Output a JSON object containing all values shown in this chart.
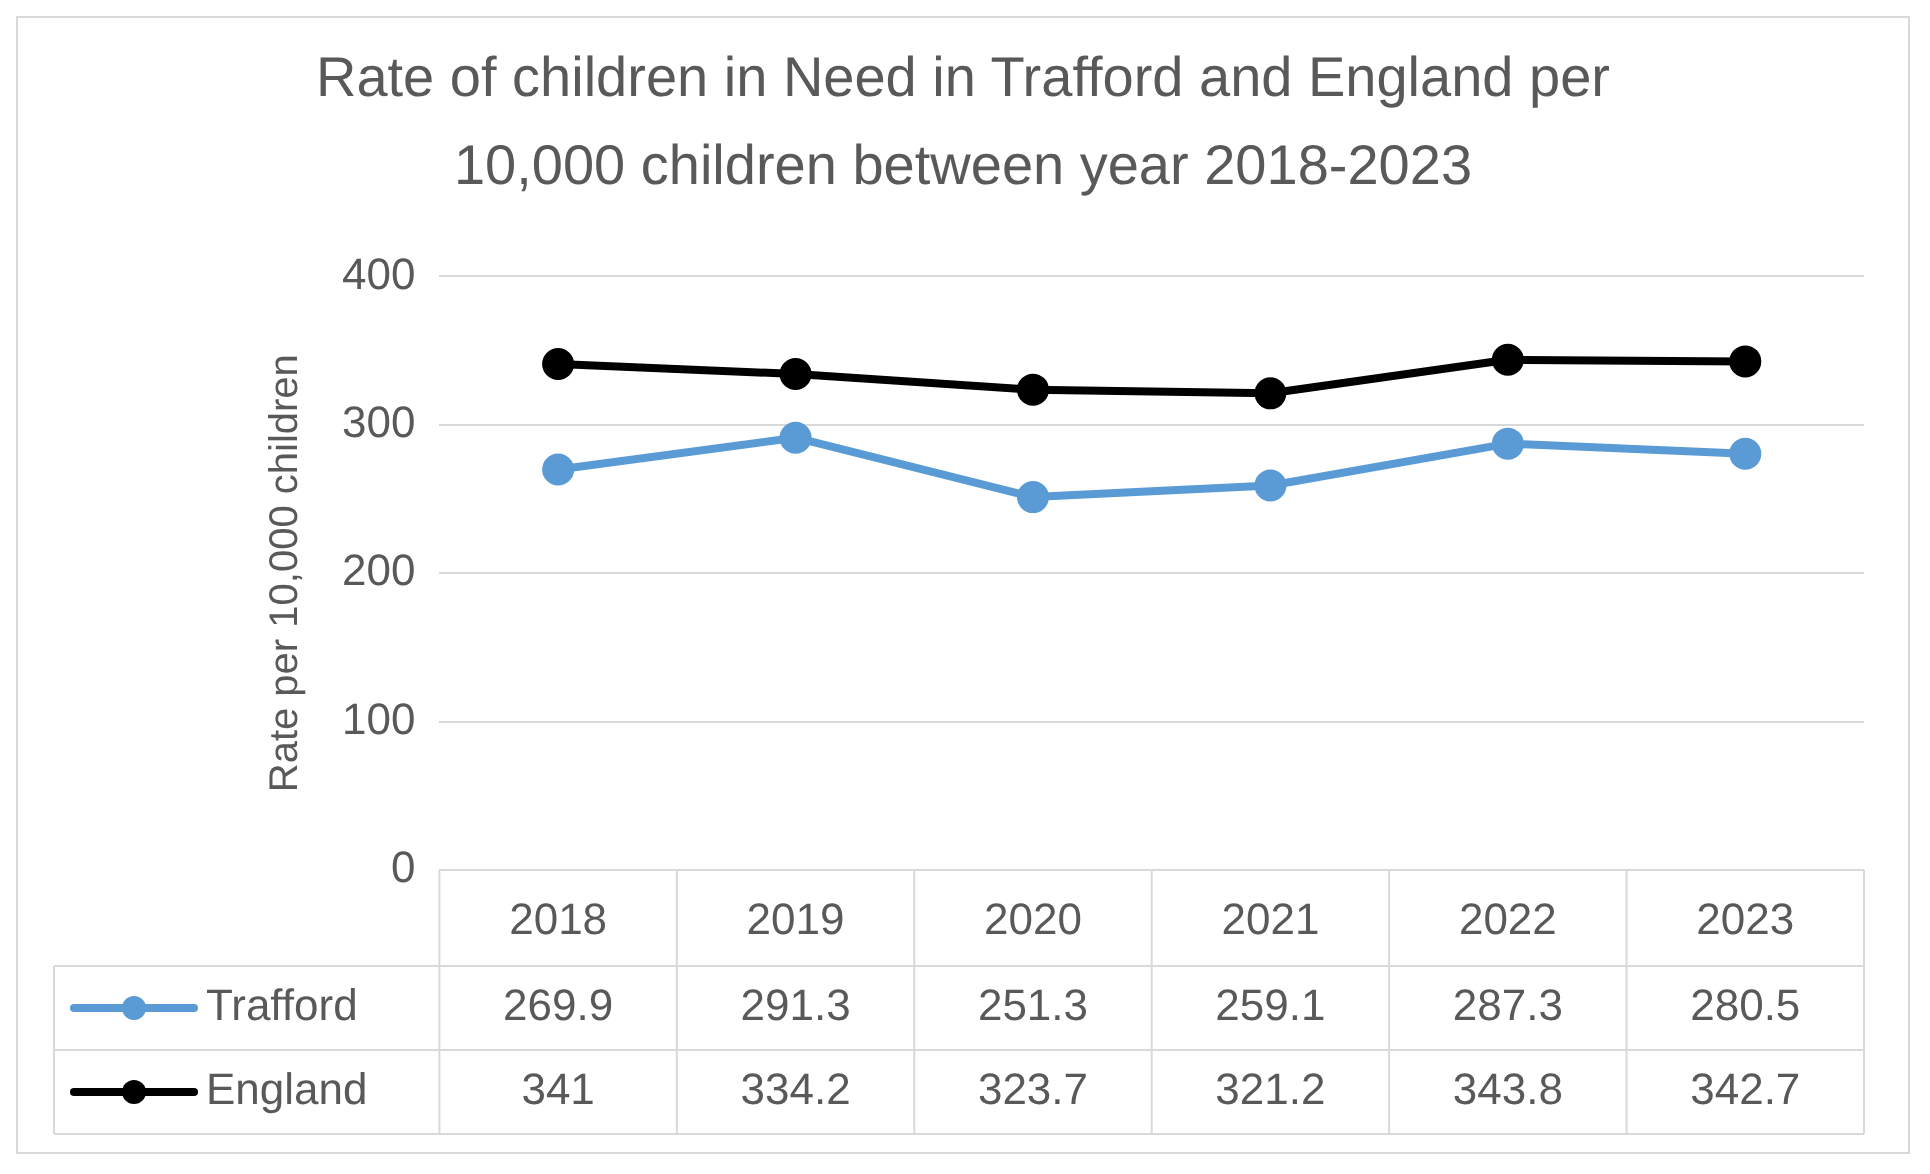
{
  "chart_data": {
    "type": "line",
    "title": "Rate of children in Need in Trafford and England per 10,000 children between year 2018-2023",
    "ylabel": "Rate per 10,000 children",
    "categories": [
      "2018",
      "2019",
      "2020",
      "2021",
      "2022",
      "2023"
    ],
    "series": [
      {
        "name": "Trafford",
        "color": "#5b9bd5",
        "values": [
          269.9,
          291.3,
          251.3,
          259.1,
          287.3,
          280.5
        ]
      },
      {
        "name": "England",
        "color": "#000000",
        "values": [
          341,
          334.2,
          323.7,
          321.2,
          343.8,
          342.7
        ]
      }
    ],
    "ylim": [
      0,
      400
    ],
    "yticks": [
      0,
      100,
      200,
      300,
      400
    ],
    "grid": "y",
    "legend": "bottom",
    "marker": "circle",
    "line_style": "solid",
    "data_labels": true
  }
}
